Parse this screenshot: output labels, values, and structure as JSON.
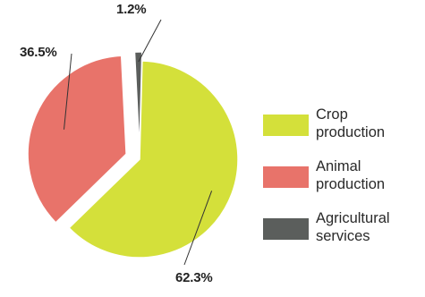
{
  "chart_data": {
    "type": "pie",
    "title": "",
    "slices": [
      {
        "label": "Crop\nproduction",
        "value": 62.3,
        "value_label": "62.3%",
        "color": "#d4e03a",
        "exploded": false
      },
      {
        "label": "Animal\nproduction",
        "value": 36.5,
        "value_label": "36.5%",
        "color": "#e8736a",
        "exploded": true
      },
      {
        "label": "Agricultural\nservices",
        "value": 1.2,
        "value_label": "1.2%",
        "color": "#5b5e5c",
        "exploded": true
      }
    ],
    "legend_placement": "right",
    "slice_border_color": "#ffffff"
  }
}
